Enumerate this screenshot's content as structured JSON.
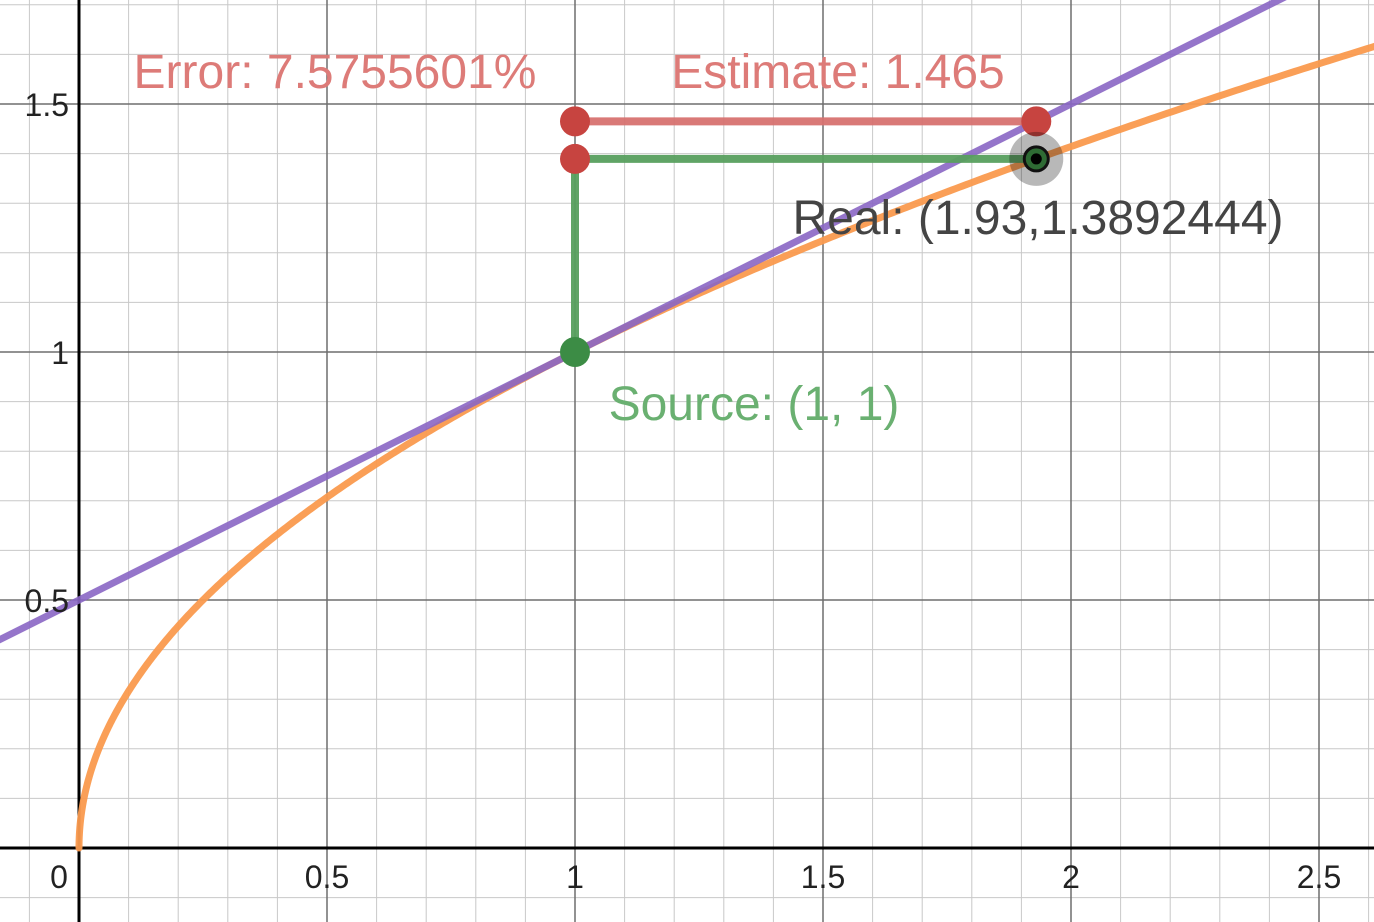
{
  "chart_data": {
    "type": "line",
    "title": "",
    "xlabel": "",
    "ylabel": "",
    "xlim": [
      -0.16,
      2.6
    ],
    "ylim": [
      -0.15,
      1.7
    ],
    "grid": true,
    "x_ticks": [
      {
        "value": 0,
        "label": "0"
      },
      {
        "value": 0.5,
        "label": "0.5"
      },
      {
        "value": 1,
        "label": "1"
      },
      {
        "value": 1.5,
        "label": "1.5"
      },
      {
        "value": 2,
        "label": "2"
      },
      {
        "value": 2.5,
        "label": "2.5"
      }
    ],
    "y_ticks": [
      {
        "value": 0.5,
        "label": "0.5"
      },
      {
        "value": 1,
        "label": "1"
      },
      {
        "value": 1.5,
        "label": "1.5"
      }
    ],
    "minor_step": 0.1,
    "series": [
      {
        "kind": "function",
        "expr": "sqrt(x)",
        "x_from": 0,
        "color": "#fa9a4e"
      },
      {
        "kind": "function",
        "expr": "0.5*x + 0.5",
        "color": "#8a66c4"
      }
    ],
    "points": [
      {
        "key": "source",
        "x": 1,
        "y": 1,
        "color": "#3c8c45"
      },
      {
        "key": "estimate_left",
        "x": 1,
        "y": 1.465,
        "color": "#c74440"
      },
      {
        "key": "estimate_right",
        "x": 1.93,
        "y": 1.465,
        "color": "#c74440"
      },
      {
        "key": "real_left",
        "x": 1,
        "y": 1.3892444,
        "color": "#c74440"
      },
      {
        "key": "real",
        "x": 1.93,
        "y": 1.3892444,
        "color": "#111111"
      }
    ],
    "segments": [
      {
        "from": [
          1,
          1.465
        ],
        "to": [
          1.93,
          1.465
        ],
        "color": "#d77270"
      },
      {
        "from": [
          1,
          1
        ],
        "to": [
          1,
          1.3892444
        ],
        "color": "#58a05e"
      },
      {
        "from": [
          1,
          1.3892444
        ],
        "to": [
          1.93,
          1.3892444
        ],
        "color": "#58a05e"
      }
    ],
    "annotations": {
      "error": {
        "text": "Error: 7.5755601%",
        "color": "#dd7b78"
      },
      "estimate": {
        "text": "Estimate: 1.465",
        "color": "#dd7b78"
      },
      "real": {
        "text": "Real: (1.93,1.3892444)",
        "color": "#444444"
      },
      "source": {
        "text": "Source: (1, 1)",
        "color": "#6ab071"
      }
    }
  }
}
